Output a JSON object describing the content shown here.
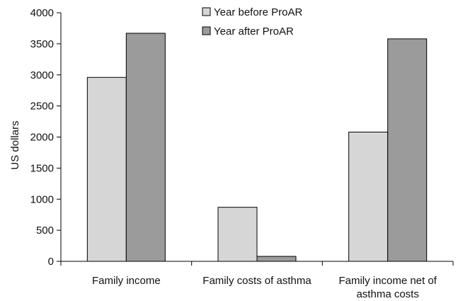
{
  "chart_data": {
    "type": "bar",
    "title": "",
    "xlabel": "",
    "ylabel": "US dollars",
    "ylim": [
      0,
      4000
    ],
    "yticks": [
      0,
      500,
      1000,
      1500,
      2000,
      2500,
      3000,
      3500,
      4000
    ],
    "categories": [
      [
        "Family income"
      ],
      [
        "Family costs of asthma"
      ],
      [
        "Family income net of",
        "asthma costs"
      ]
    ],
    "series": [
      {
        "name": "Year before ProAR",
        "values": [
          2960,
          870,
          2080
        ],
        "color": "#d6d6d6"
      },
      {
        "name": "Year after ProAR",
        "values": [
          3670,
          80,
          3580
        ],
        "color": "#9b9b9b"
      }
    ],
    "legend": "top-center",
    "grid": false
  }
}
